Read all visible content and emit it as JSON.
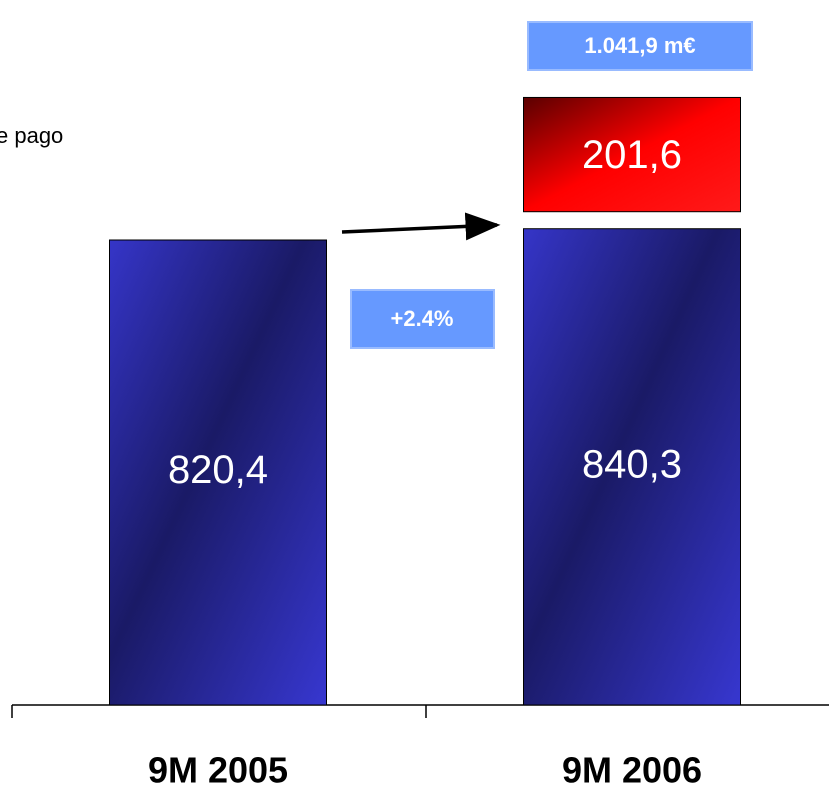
{
  "chart_data": {
    "type": "stacked_bar",
    "categories": [
      "9M 2005",
      "9M 2006"
    ],
    "series": [
      {
        "color": "#3333cc",
        "values": [
          820.4,
          840.3
        ],
        "value_labels": [
          "820,4",
          "840,3"
        ]
      },
      {
        "color": "#ff0000",
        "values": [
          null,
          201.6
        ],
        "value_labels": [
          null,
          "201,6"
        ]
      }
    ],
    "annotations": {
      "total": "1.041,9 m€",
      "growth": "+2.4%",
      "legend_fragment": "e pago"
    }
  }
}
